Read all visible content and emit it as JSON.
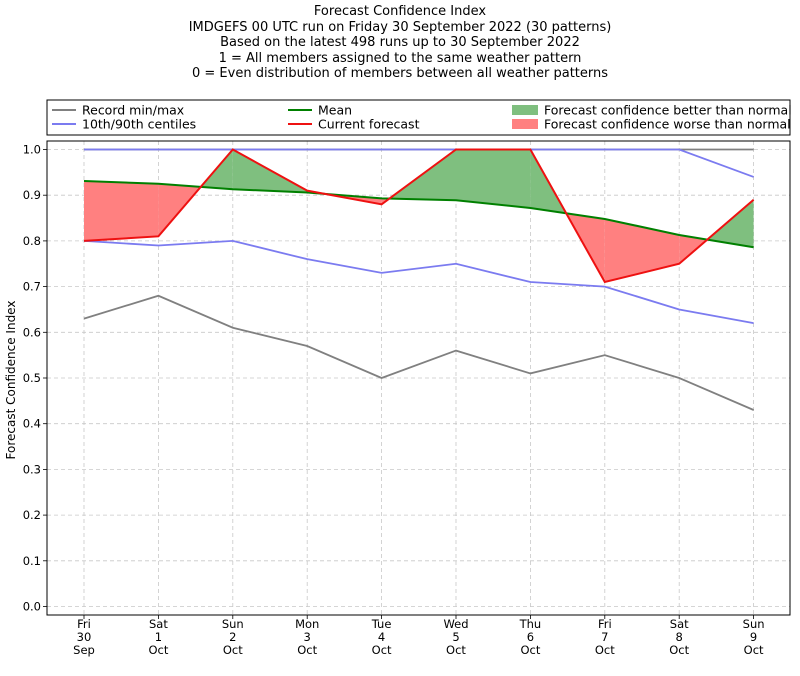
{
  "title_lines": [
    "Forecast Confidence Index",
    "IMDGEFS 00 UTC run on Friday 30 September 2022 (30 patterns)",
    "Based on the latest 498 runs up to 30 September 2022",
    "1 = All members assigned to the same weather pattern",
    "0 = Even distribution of members between all weather patterns"
  ],
  "legend": [
    {
      "label": "Record min/max",
      "kind": "line",
      "color": "#808080"
    },
    {
      "label": "10th/90th centiles",
      "kind": "line",
      "color": "#7b7bf0"
    },
    {
      "label": "Mean",
      "kind": "line",
      "color": "#008000"
    },
    {
      "label": "Current forecast",
      "kind": "line",
      "color": "#ee1111"
    },
    {
      "label": "Forecast confidence better than normal",
      "kind": "patch",
      "color": "#7fbf7f"
    },
    {
      "label": "Forecast confidence worse than normal",
      "kind": "patch",
      "color": "#ff8080"
    }
  ],
  "chart_data": {
    "type": "line",
    "ylabel": "Forecast Confidence Index",
    "xlabel": "",
    "ylim": [
      0,
      1
    ],
    "yticks": [
      "0.0",
      "0.1",
      "0.2",
      "0.3",
      "0.4",
      "0.5",
      "0.6",
      "0.7",
      "0.8",
      "0.9",
      "1.0"
    ],
    "grid": true,
    "legend_position": "top",
    "categories": [
      [
        "Fri",
        "30",
        "Sep"
      ],
      [
        "Sat",
        "1",
        "Oct"
      ],
      [
        "Sun",
        "2",
        "Oct"
      ],
      [
        "Mon",
        "3",
        "Oct"
      ],
      [
        "Tue",
        "4",
        "Oct"
      ],
      [
        "Wed",
        "5",
        "Oct"
      ],
      [
        "Thu",
        "6",
        "Oct"
      ],
      [
        "Fri",
        "7",
        "Oct"
      ],
      [
        "Sat",
        "8",
        "Oct"
      ],
      [
        "Sun",
        "9",
        "Oct"
      ]
    ],
    "series": [
      {
        "name": "Record min/max",
        "role": "record_min",
        "color": "#808080",
        "values": [
          0.63,
          0.68,
          0.61,
          0.57,
          0.5,
          0.56,
          0.51,
          0.55,
          0.5,
          0.43
        ]
      },
      {
        "name": "Record min/max",
        "role": "record_max",
        "color": "#808080",
        "values": [
          1.0,
          1.0,
          1.0,
          1.0,
          1.0,
          1.0,
          1.0,
          1.0,
          1.0,
          1.0
        ]
      },
      {
        "name": "10th/90th centiles",
        "role": "p10",
        "color": "#7b7bf0",
        "values": [
          0.8,
          0.79,
          0.8,
          0.76,
          0.73,
          0.75,
          0.71,
          0.7,
          0.65,
          0.62
        ]
      },
      {
        "name": "10th/90th centiles",
        "role": "p90",
        "color": "#7b7bf0",
        "values": [
          1.0,
          1.0,
          1.0,
          1.0,
          1.0,
          1.0,
          1.0,
          1.0,
          1.0,
          0.94
        ]
      },
      {
        "name": "Mean",
        "role": "mean",
        "color": "#008000",
        "values": [
          0.931,
          0.925,
          0.913,
          0.906,
          0.893,
          0.889,
          0.872,
          0.848,
          0.813,
          0.786
        ]
      },
      {
        "name": "Current forecast",
        "role": "current",
        "color": "#ee1111",
        "values": [
          0.8,
          0.81,
          1.0,
          0.91,
          0.88,
          1.0,
          1.0,
          0.71,
          0.75,
          0.89
        ]
      }
    ]
  }
}
